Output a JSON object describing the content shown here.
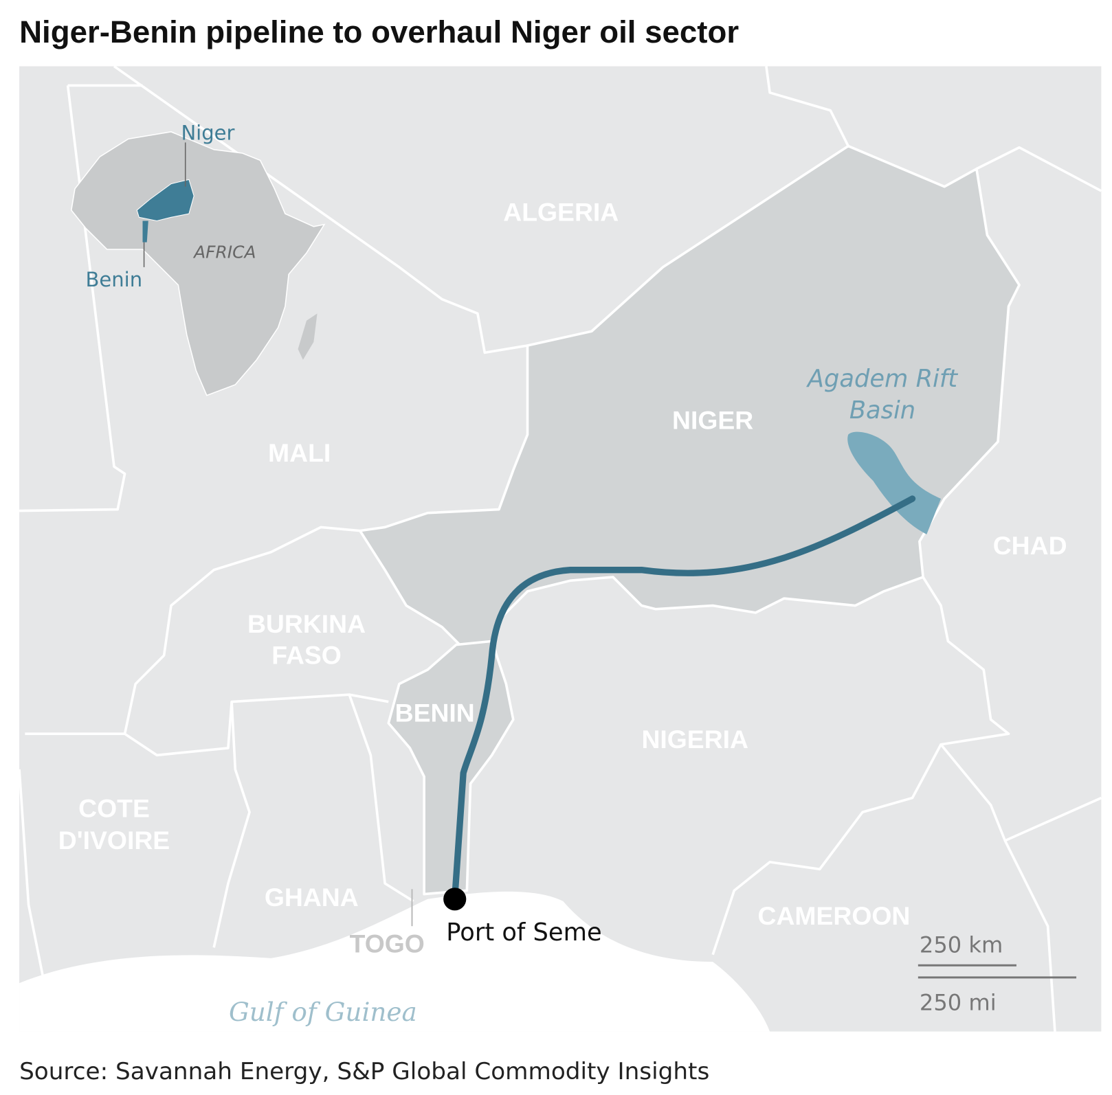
{
  "title": "Niger-Benin pipeline to overhaul Niger oil sector",
  "source": "Source: Savannah Energy, S&P Global Commodity Insights",
  "colors": {
    "land": "#e6e7e8",
    "highlight": "#d1d4d5",
    "pipeline": "#356e86",
    "basin": "#7aabbd",
    "sea": "#ffffff",
    "inset_highlight": "#3f7d96"
  },
  "map": {
    "countries": [
      "ALGERIA",
      "MALI",
      "NIGER",
      "CHAD",
      "BURKINA",
      "FASO",
      "BENIN",
      "NIGERIA",
      "COTE",
      "D'IVOIRE",
      "GHANA",
      "TOGO",
      "CAMEROON"
    ],
    "basin_line1": "Agadem Rift",
    "basin_line2": "Basin",
    "port": "Port of Seme",
    "sea": "Gulf of Guinea",
    "scale_km": "250 km",
    "scale_mi": "250 mi"
  },
  "inset": {
    "niger": "Niger",
    "benin": "Benin",
    "continent": "AFRICA"
  }
}
